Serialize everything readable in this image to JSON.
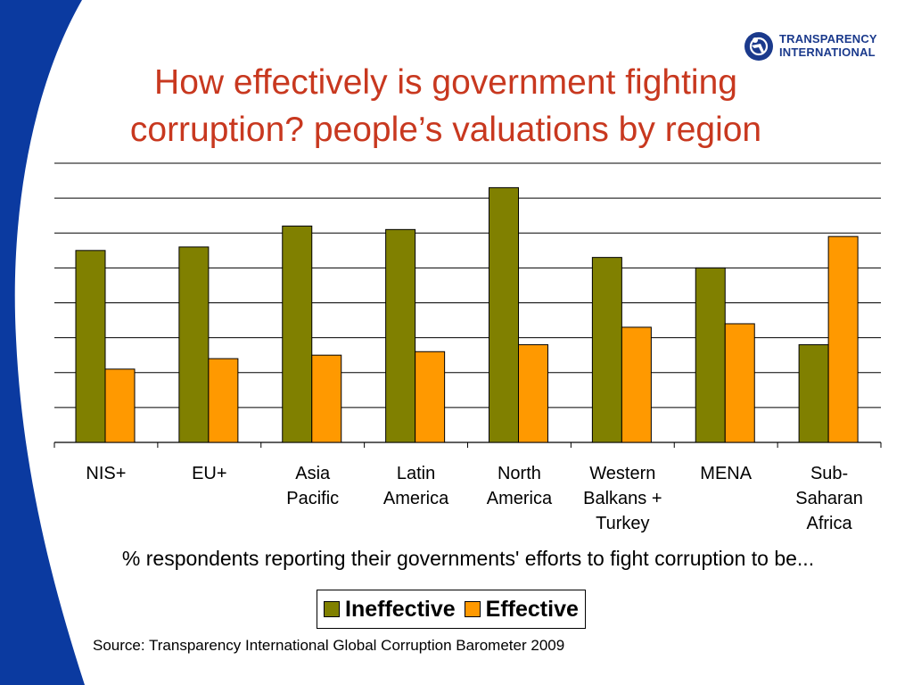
{
  "title": {
    "line1": "How effectively is government fighting",
    "line2": "corruption? people’s valuations by region"
  },
  "logo": {
    "line1": "TRANSPARENCY",
    "line2": "INTERNATIONAL",
    "icon": "ti-globe-icon",
    "color": "#1b3a8c"
  },
  "decoration": {
    "swoosh_color": "#0b3aa0"
  },
  "subtitle": "% respondents reporting their governments' efforts to fight corruption to be...",
  "source": "Source: Transparency International Global Corruption Barometer 2009",
  "chart_data": {
    "type": "bar",
    "categories": [
      [
        "NIS+"
      ],
      [
        "EU+"
      ],
      [
        "Asia",
        "Pacific"
      ],
      [
        "Latin",
        "America"
      ],
      [
        "North",
        "America"
      ],
      [
        "Western",
        "Balkans +",
        "Turkey"
      ],
      [
        "MENA"
      ],
      [
        "Sub-",
        "Saharan",
        "Africa"
      ]
    ],
    "series": [
      {
        "name": "Ineffective",
        "color": "#808000",
        "values": [
          55,
          56,
          62,
          61,
          73,
          53,
          50,
          28
        ]
      },
      {
        "name": "Effective",
        "color": "#ff9900",
        "values": [
          21,
          24,
          25,
          26,
          28,
          33,
          34,
          59
        ]
      }
    ],
    "ylim": [
      0,
      80
    ],
    "grid": true,
    "legend": "bottom"
  }
}
